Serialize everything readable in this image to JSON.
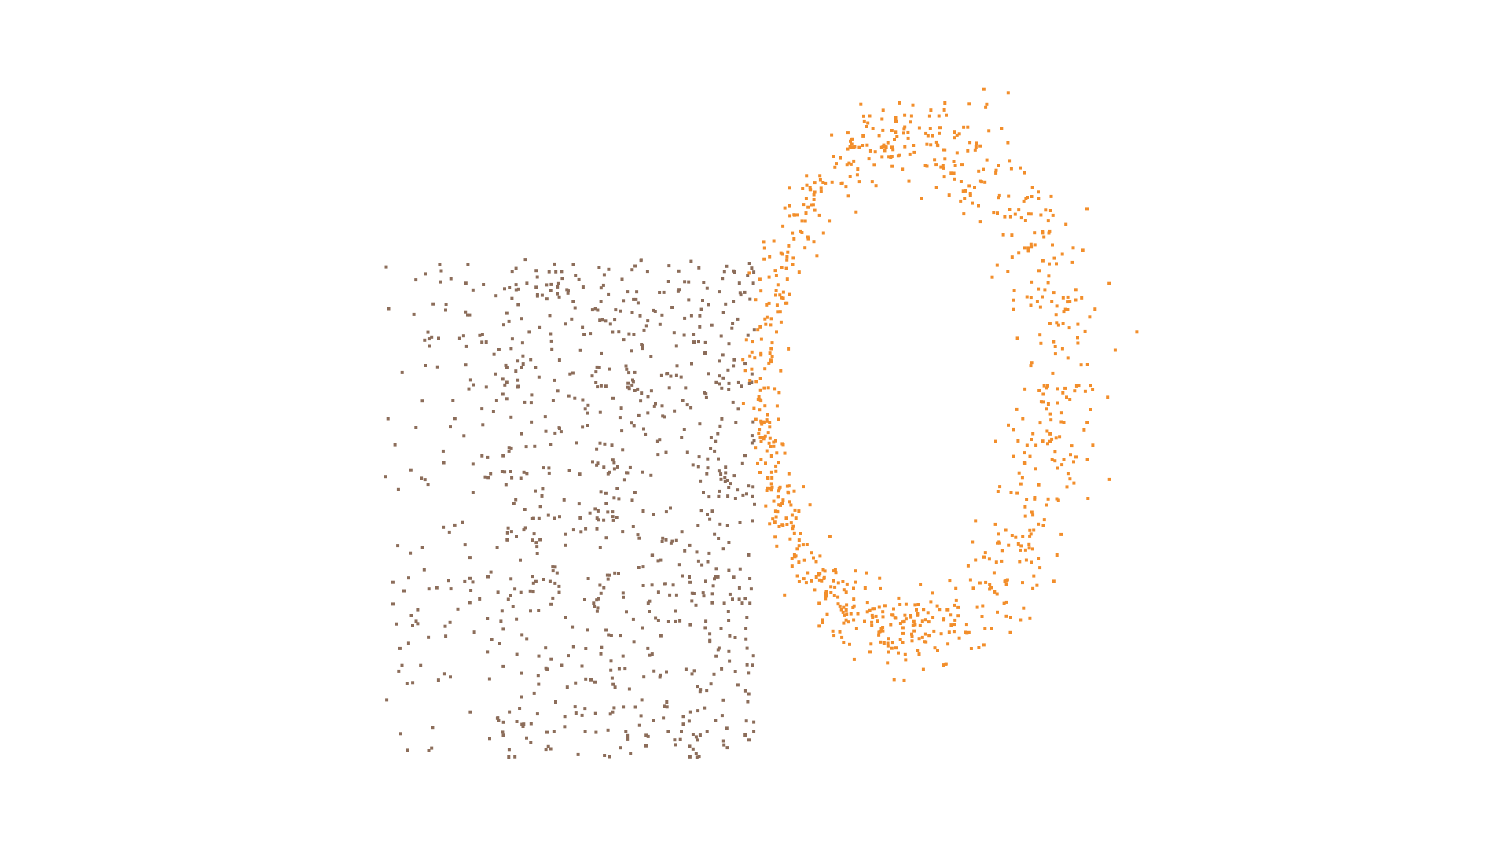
{
  "chart_data": {
    "type": "scatter",
    "title": "",
    "xlabel": "",
    "ylabel": "",
    "grid": false,
    "legend": "none",
    "axes_visible": false,
    "xlim": [
      0,
      1
    ],
    "ylim": [
      0,
      1
    ],
    "series": [
      {
        "color": "#8c6d5a",
        "shape": "scattered band",
        "point_count": 900,
        "x_range": [
          0.05,
          0.52
        ],
        "y_range": [
          0.03,
          0.75
        ]
      },
      {
        "color": "#f28e2b",
        "shape": "ring",
        "point_count": 900,
        "center": [
          0.72,
          0.57
        ],
        "radius_x": 0.19,
        "radius_y": 0.36
      }
    ]
  }
}
